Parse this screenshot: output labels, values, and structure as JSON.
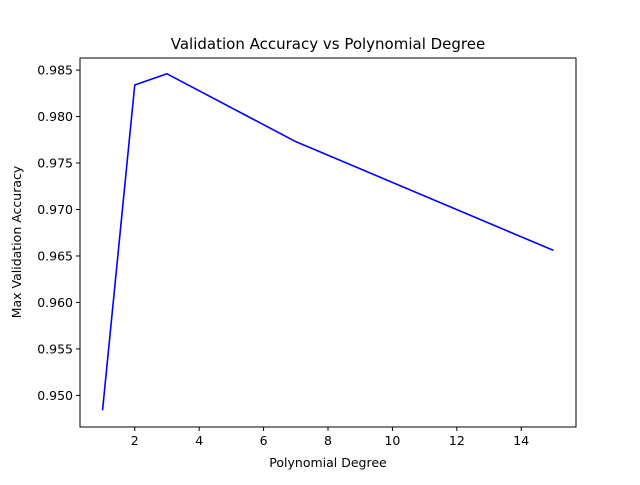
{
  "chart_data": {
    "type": "line",
    "title": "Validation Accuracy vs Polynomial Degree",
    "xlabel": "Polynomial Degree",
    "ylabel": "Max Validation Accuracy",
    "xlim": [
      0.3,
      15.7
    ],
    "ylim": [
      0.9466,
      0.9863
    ],
    "xticks": [
      2,
      4,
      6,
      8,
      10,
      12,
      14
    ],
    "yticks": [
      0.95,
      0.955,
      0.96,
      0.965,
      0.97,
      0.975,
      0.98,
      0.985
    ],
    "xtick_labels": [
      "2",
      "4",
      "6",
      "8",
      "10",
      "12",
      "14"
    ],
    "ytick_labels": [
      "0.950",
      "0.955",
      "0.960",
      "0.965",
      "0.970",
      "0.975",
      "0.980",
      "0.985"
    ],
    "grid": false,
    "series": [
      {
        "color": "#0000ff",
        "x": [
          1,
          2,
          3,
          7,
          15
        ],
        "y": [
          0.9484,
          0.9834,
          0.9846,
          0.9773,
          0.9656
        ]
      }
    ]
  }
}
